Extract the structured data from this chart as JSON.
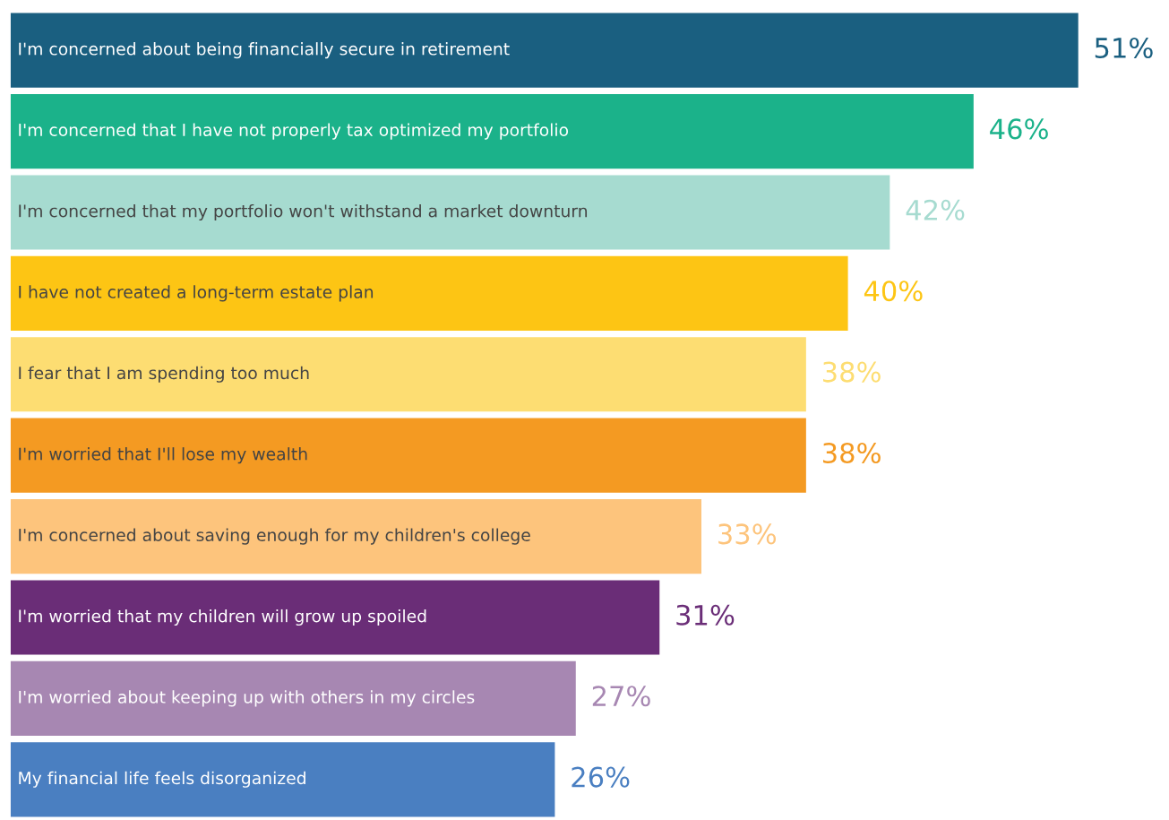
{
  "chart_data": {
    "type": "bar",
    "orientation": "horizontal",
    "categories": [
      "I'm concerned about being financially secure in retirement",
      "I'm concerned that I have not properly tax optimized my portfolio",
      "I'm concerned that my portfolio won't withstand a market downturn",
      "I have not created a long-term estate plan",
      "I fear that I am spending too much",
      "I'm worried that I'll lose my wealth",
      "I'm concerned about saving enough for my children's college",
      "I'm worried that my children will grow up spoiled",
      "I'm worried about keeping up with others in my circles",
      "My financial life feels disorganized"
    ],
    "values": [
      51,
      46,
      42,
      40,
      38,
      38,
      33,
      31,
      27,
      26
    ],
    "value_labels": [
      "51%",
      "46%",
      "42%",
      "40%",
      "38%",
      "38%",
      "33%",
      "31%",
      "27%",
      "26%"
    ],
    "colors": [
      "#1a5f80",
      "#1bb28a",
      "#a6dbd0",
      "#fdc514",
      "#fddd72",
      "#f49a22",
      "#fdc47c",
      "#6a2d77",
      "#a787b2",
      "#4a7fc1"
    ],
    "legend": false
  }
}
